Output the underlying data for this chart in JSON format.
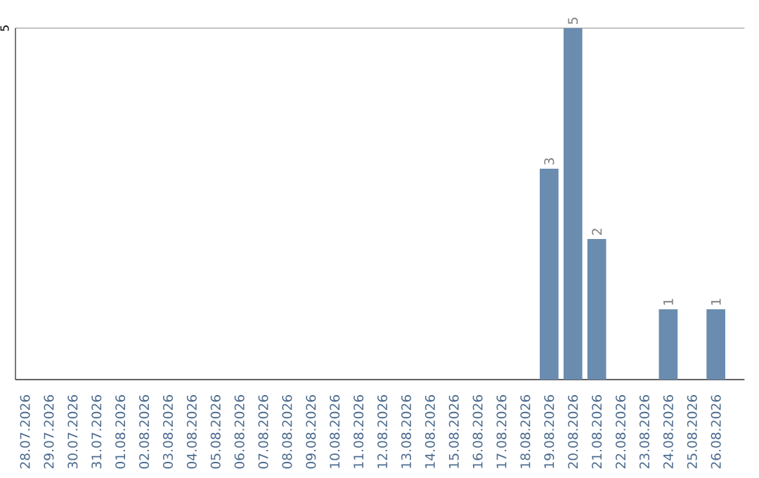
{
  "chart_data": {
    "type": "bar",
    "categories": [
      "28.07.2026",
      "29.07.2026",
      "30.07.2026",
      "31.07.2026",
      "01.08.2026",
      "02.08.2026",
      "03.08.2026",
      "04.08.2026",
      "05.08.2026",
      "06.08.2026",
      "07.08.2026",
      "08.08.2026",
      "09.08.2026",
      "10.08.2026",
      "11.08.2026",
      "12.08.2026",
      "13.08.2026",
      "14.08.2026",
      "15.08.2026",
      "16.08.2026",
      "17.08.2026",
      "18.08.2026",
      "19.08.2026",
      "20.08.2026",
      "21.08.2026",
      "22.08.2026",
      "23.08.2026",
      "24.08.2026",
      "25.08.2026",
      "26.08.2026"
    ],
    "values": [
      null,
      null,
      null,
      null,
      null,
      null,
      null,
      null,
      null,
      null,
      null,
      null,
      null,
      null,
      null,
      null,
      null,
      null,
      null,
      null,
      null,
      null,
      3,
      5,
      2,
      null,
      null,
      1,
      null,
      1
    ],
    "data_labels": true,
    "color": "#6a8caf",
    "ylim": [
      0,
      5
    ],
    "yticks": [
      {
        "value": 0,
        "label": null
      },
      5
    ],
    "grid": "y"
  }
}
